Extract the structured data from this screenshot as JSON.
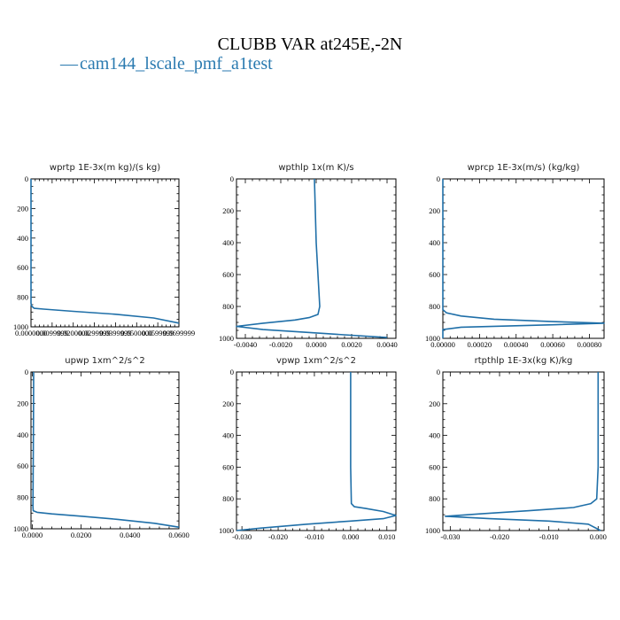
{
  "figure": {
    "title": "CLUBB VAR at245E,-2N",
    "legend": {
      "symbol": "—",
      "label": "cam144_lscale_pmf_a1test"
    },
    "colors": {
      "line": "#1f6fa8",
      "legend_text": "#2a7ab0"
    }
  },
  "chart_data": [
    {
      "type": "line",
      "title": "wprtp  1E-3x(m kg)/(s kg)",
      "ylim": [
        1000,
        0
      ],
      "yticks": [
        0,
        200,
        400,
        600,
        800,
        1000
      ],
      "xlim": [
        0,
        0.07
      ],
      "xticks": [
        0,
        0.01,
        0.02,
        0.03,
        0.04,
        0.05,
        0.06,
        0.07
      ],
      "xtick_labels": [
        "0.0000000",
        "0.0099999",
        "0.0200000",
        "0.0299999",
        "0.0399999",
        "0.0500000",
        "0.0599999",
        "0.0699999"
      ],
      "series": [
        {
          "x": [
            0,
            0,
            0,
            0,
            0.0003,
            0.0015,
            0.006,
            0.02,
            0.04,
            0.058,
            0.07
          ],
          "y": [
            0,
            300,
            600,
            840,
            860,
            875,
            880,
            895,
            915,
            940,
            975
          ]
        }
      ]
    },
    {
      "type": "line",
      "title": "wpthlp  1x(m K)/s",
      "ylim": [
        1000,
        0
      ],
      "yticks": [
        0,
        200,
        400,
        600,
        800,
        1000
      ],
      "xlim": [
        -0.0045,
        0.0045
      ],
      "xticks": [
        -0.004,
        -0.002,
        0,
        0.002,
        0.004
      ],
      "xtick_labels": [
        "-0.0040",
        "-0.0020",
        "0.0000",
        "0.0020",
        "0.0040"
      ],
      "series": [
        {
          "x": [
            -0.0001,
            -5e-05,
            0,
            0.0001,
            0.0002,
            0.0001,
            -0.0004,
            -0.0012,
            -0.003,
            -0.0045,
            -0.003,
            0.0005,
            0.004
          ],
          "y": [
            0,
            200,
            400,
            600,
            800,
            850,
            870,
            885,
            905,
            925,
            945,
            970,
            995
          ]
        }
      ]
    },
    {
      "type": "line",
      "title": "wprcp  1E-3x(m/s) (kg/kg)",
      "ylim": [
        1000,
        0
      ],
      "yticks": [
        0,
        200,
        400,
        600,
        800,
        1000
      ],
      "xlim": [
        0,
        0.00088
      ],
      "xticks": [
        0,
        0.0002,
        0.0004,
        0.0006,
        0.0008
      ],
      "xtick_labels": [
        "0.00000",
        "0.00020",
        "0.00040",
        "0.00060",
        "0.00080"
      ],
      "series": [
        {
          "x": [
            0,
            0,
            0,
            2e-05,
            0.0001,
            0.00028,
            0.0006,
            0.00088,
            0.0006,
            0.0001,
            0,
            0
          ],
          "y": [
            0,
            400,
            820,
            840,
            860,
            880,
            895,
            905,
            915,
            930,
            945,
            1000
          ]
        }
      ]
    },
    {
      "type": "line",
      "title": "upwp  1xm^2/s^2",
      "ylim": [
        1000,
        0
      ],
      "yticks": [
        0,
        200,
        400,
        600,
        800,
        1000
      ],
      "xlim": [
        -0.0005,
        0.06
      ],
      "xticks": [
        0,
        0.02,
        0.04,
        0.06
      ],
      "xtick_labels": [
        "0.0000",
        "0.0200",
        "0.0400",
        "0.0600"
      ],
      "series": [
        {
          "x": [
            0.0006,
            0.0005,
            0.0004,
            0.0003,
            0.0004,
            0.002,
            0.008,
            0.02,
            0.035,
            0.05,
            0.06
          ],
          "y": [
            0,
            300,
            600,
            860,
            885,
            895,
            905,
            920,
            940,
            965,
            990
          ]
        }
      ]
    },
    {
      "type": "line",
      "title": "vpwp  1xm^2/s^2",
      "ylim": [
        1000,
        0
      ],
      "yticks": [
        0,
        200,
        400,
        600,
        800,
        1000
      ],
      "xlim": [
        -0.0315,
        0.0125
      ],
      "xticks": [
        -0.03,
        -0.02,
        -0.01,
        0,
        0.01
      ],
      "xtick_labels": [
        "-0.030",
        "-0.020",
        "-0.010",
        "0.000",
        "0.010"
      ],
      "series": [
        {
          "x": [
            0,
            0,
            0,
            0.0002,
            0.001,
            0.004,
            0.009,
            0.0125,
            0.009,
            0,
            -0.012,
            -0.025,
            -0.0315
          ],
          "y": [
            0,
            300,
            600,
            830,
            850,
            860,
            880,
            905,
            925,
            940,
            960,
            985,
            1000
          ]
        }
      ]
    },
    {
      "type": "line",
      "title": "rtpthlp  1E-3x(kg K)/kg",
      "ylim": [
        1000,
        0
      ],
      "yticks": [
        0,
        200,
        400,
        600,
        800,
        1000
      ],
      "xlim": [
        -0.0315,
        0.0012
      ],
      "xticks": [
        -0.03,
        -0.02,
        -0.01,
        0
      ],
      "xtick_labels": [
        "-0.030",
        "-0.020",
        "-0.010",
        "0.000"
      ],
      "series": [
        {
          "x": [
            0,
            0,
            0,
            -0.0003,
            -0.0015,
            -0.005,
            -0.014,
            -0.024,
            -0.031,
            -0.022,
            -0.01,
            -0.002,
            0.0005
          ],
          "y": [
            0,
            300,
            600,
            800,
            830,
            855,
            875,
            895,
            910,
            925,
            940,
            960,
            1000
          ]
        }
      ]
    }
  ]
}
